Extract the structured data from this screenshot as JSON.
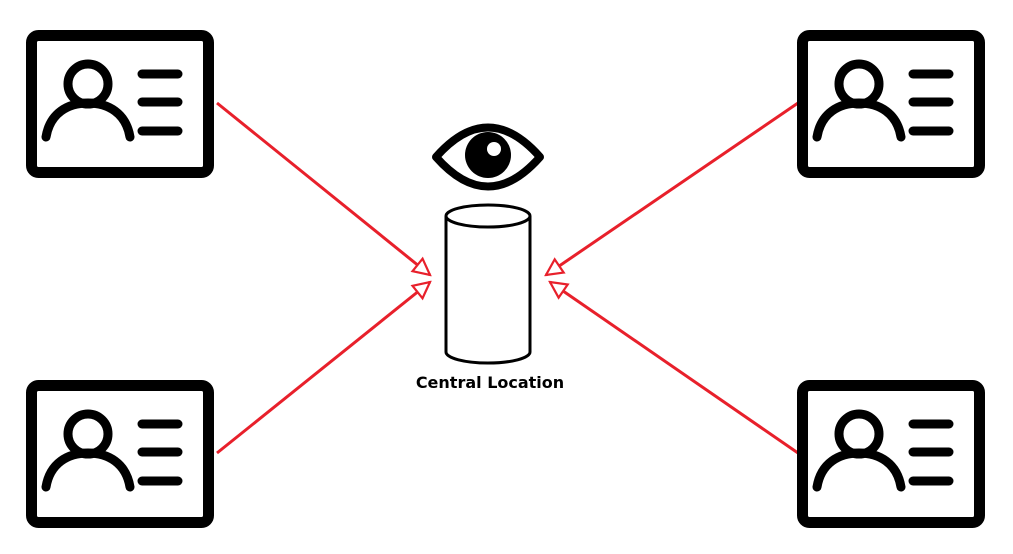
{
  "diagram": {
    "center_label": "Central Location",
    "colors": {
      "outline": "#000000",
      "arrow": "#e8202b",
      "background": "#ffffff"
    },
    "icons": {
      "card": "id-card-icon",
      "eye": "eye-icon",
      "storage": "database-cylinder-icon"
    }
  }
}
